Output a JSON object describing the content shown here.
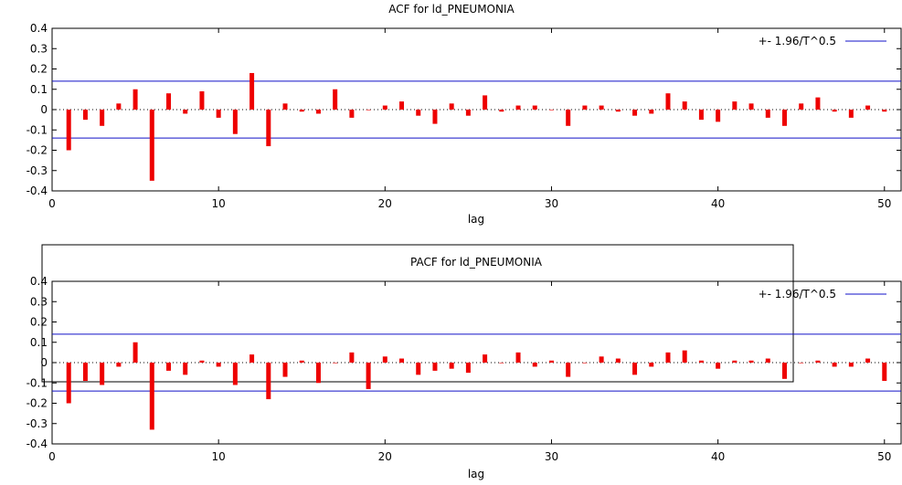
{
  "chart_data": [
    {
      "type": "bar",
      "title": "ACF for ld_PNEUMONIA",
      "xlabel": "lag",
      "ylabel": "",
      "xlim": [
        0,
        51
      ],
      "ylim": [
        -0.4,
        0.4
      ],
      "xticks": [
        0,
        10,
        20,
        30,
        40,
        50
      ],
      "yticks": [
        "0.4",
        "0.3",
        "0.2",
        "0.1",
        "0",
        "-0.1",
        "-0.2",
        "-0.3",
        "-0.4"
      ],
      "confidence_label": "+- 1.96/T^0.5",
      "confidence_band": 0.14,
      "legend": "top-right",
      "bar_color": "#ee0000",
      "band_color": "#1010c8",
      "x": [
        1,
        2,
        3,
        4,
        5,
        6,
        7,
        8,
        9,
        10,
        11,
        12,
        13,
        14,
        15,
        16,
        17,
        18,
        19,
        20,
        21,
        22,
        23,
        24,
        25,
        26,
        27,
        28,
        29,
        30,
        31,
        32,
        33,
        34,
        35,
        36,
        37,
        38,
        39,
        40,
        41,
        42,
        43,
        44,
        45,
        46,
        47,
        48,
        49,
        50
      ],
      "values": [
        -0.2,
        -0.05,
        -0.08,
        0.03,
        0.1,
        -0.35,
        0.08,
        -0.02,
        0.09,
        -0.04,
        -0.12,
        0.18,
        -0.18,
        0.03,
        -0.01,
        -0.02,
        0.1,
        -0.04,
        0.0,
        0.02,
        0.04,
        -0.03,
        -0.07,
        0.03,
        -0.03,
        0.07,
        -0.01,
        0.02,
        0.02,
        0.0,
        -0.08,
        0.02,
        0.02,
        -0.01,
        -0.03,
        -0.02,
        0.08,
        0.04,
        -0.05,
        -0.06,
        0.04,
        0.03,
        -0.04,
        -0.08,
        0.03,
        0.06,
        -0.01,
        -0.04,
        0.02,
        -0.01
      ]
    },
    {
      "type": "bar",
      "title": "PACF for ld_PNEUMONIA",
      "xlabel": "lag",
      "ylabel": "",
      "xlim": [
        0,
        51
      ],
      "ylim": [
        -0.4,
        0.4
      ],
      "xticks": [
        0,
        10,
        20,
        30,
        40,
        50
      ],
      "yticks": [
        "0.4",
        "0.3",
        "0.2",
        "0.1",
        "0",
        "-0.1",
        "-0.2",
        "-0.3",
        "-0.4"
      ],
      "confidence_label": "+- 1.96/T^0.5",
      "confidence_band": 0.14,
      "legend": "top-right",
      "bar_color": "#ee0000",
      "band_color": "#1010c8",
      "x": [
        1,
        2,
        3,
        4,
        5,
        6,
        7,
        8,
        9,
        10,
        11,
        12,
        13,
        14,
        15,
        16,
        17,
        18,
        19,
        20,
        21,
        22,
        23,
        24,
        25,
        26,
        27,
        28,
        29,
        30,
        31,
        32,
        33,
        34,
        35,
        36,
        37,
        38,
        39,
        40,
        41,
        42,
        43,
        44,
        45,
        46,
        47,
        48,
        49,
        50
      ],
      "values": [
        -0.2,
        -0.09,
        -0.11,
        -0.02,
        0.1,
        -0.33,
        -0.04,
        -0.06,
        0.01,
        -0.02,
        -0.11,
        0.04,
        -0.18,
        -0.07,
        0.01,
        -0.1,
        0.0,
        0.05,
        -0.13,
        0.03,
        0.02,
        -0.06,
        -0.04,
        -0.03,
        -0.05,
        0.04,
        0.0,
        0.05,
        -0.02,
        0.01,
        -0.07,
        0.0,
        0.03,
        0.02,
        -0.06,
        -0.02,
        0.05,
        0.06,
        0.01,
        -0.03,
        0.01,
        0.01,
        0.02,
        -0.08,
        0.0,
        0.01,
        -0.02,
        -0.02,
        0.02,
        -0.09
      ]
    }
  ]
}
